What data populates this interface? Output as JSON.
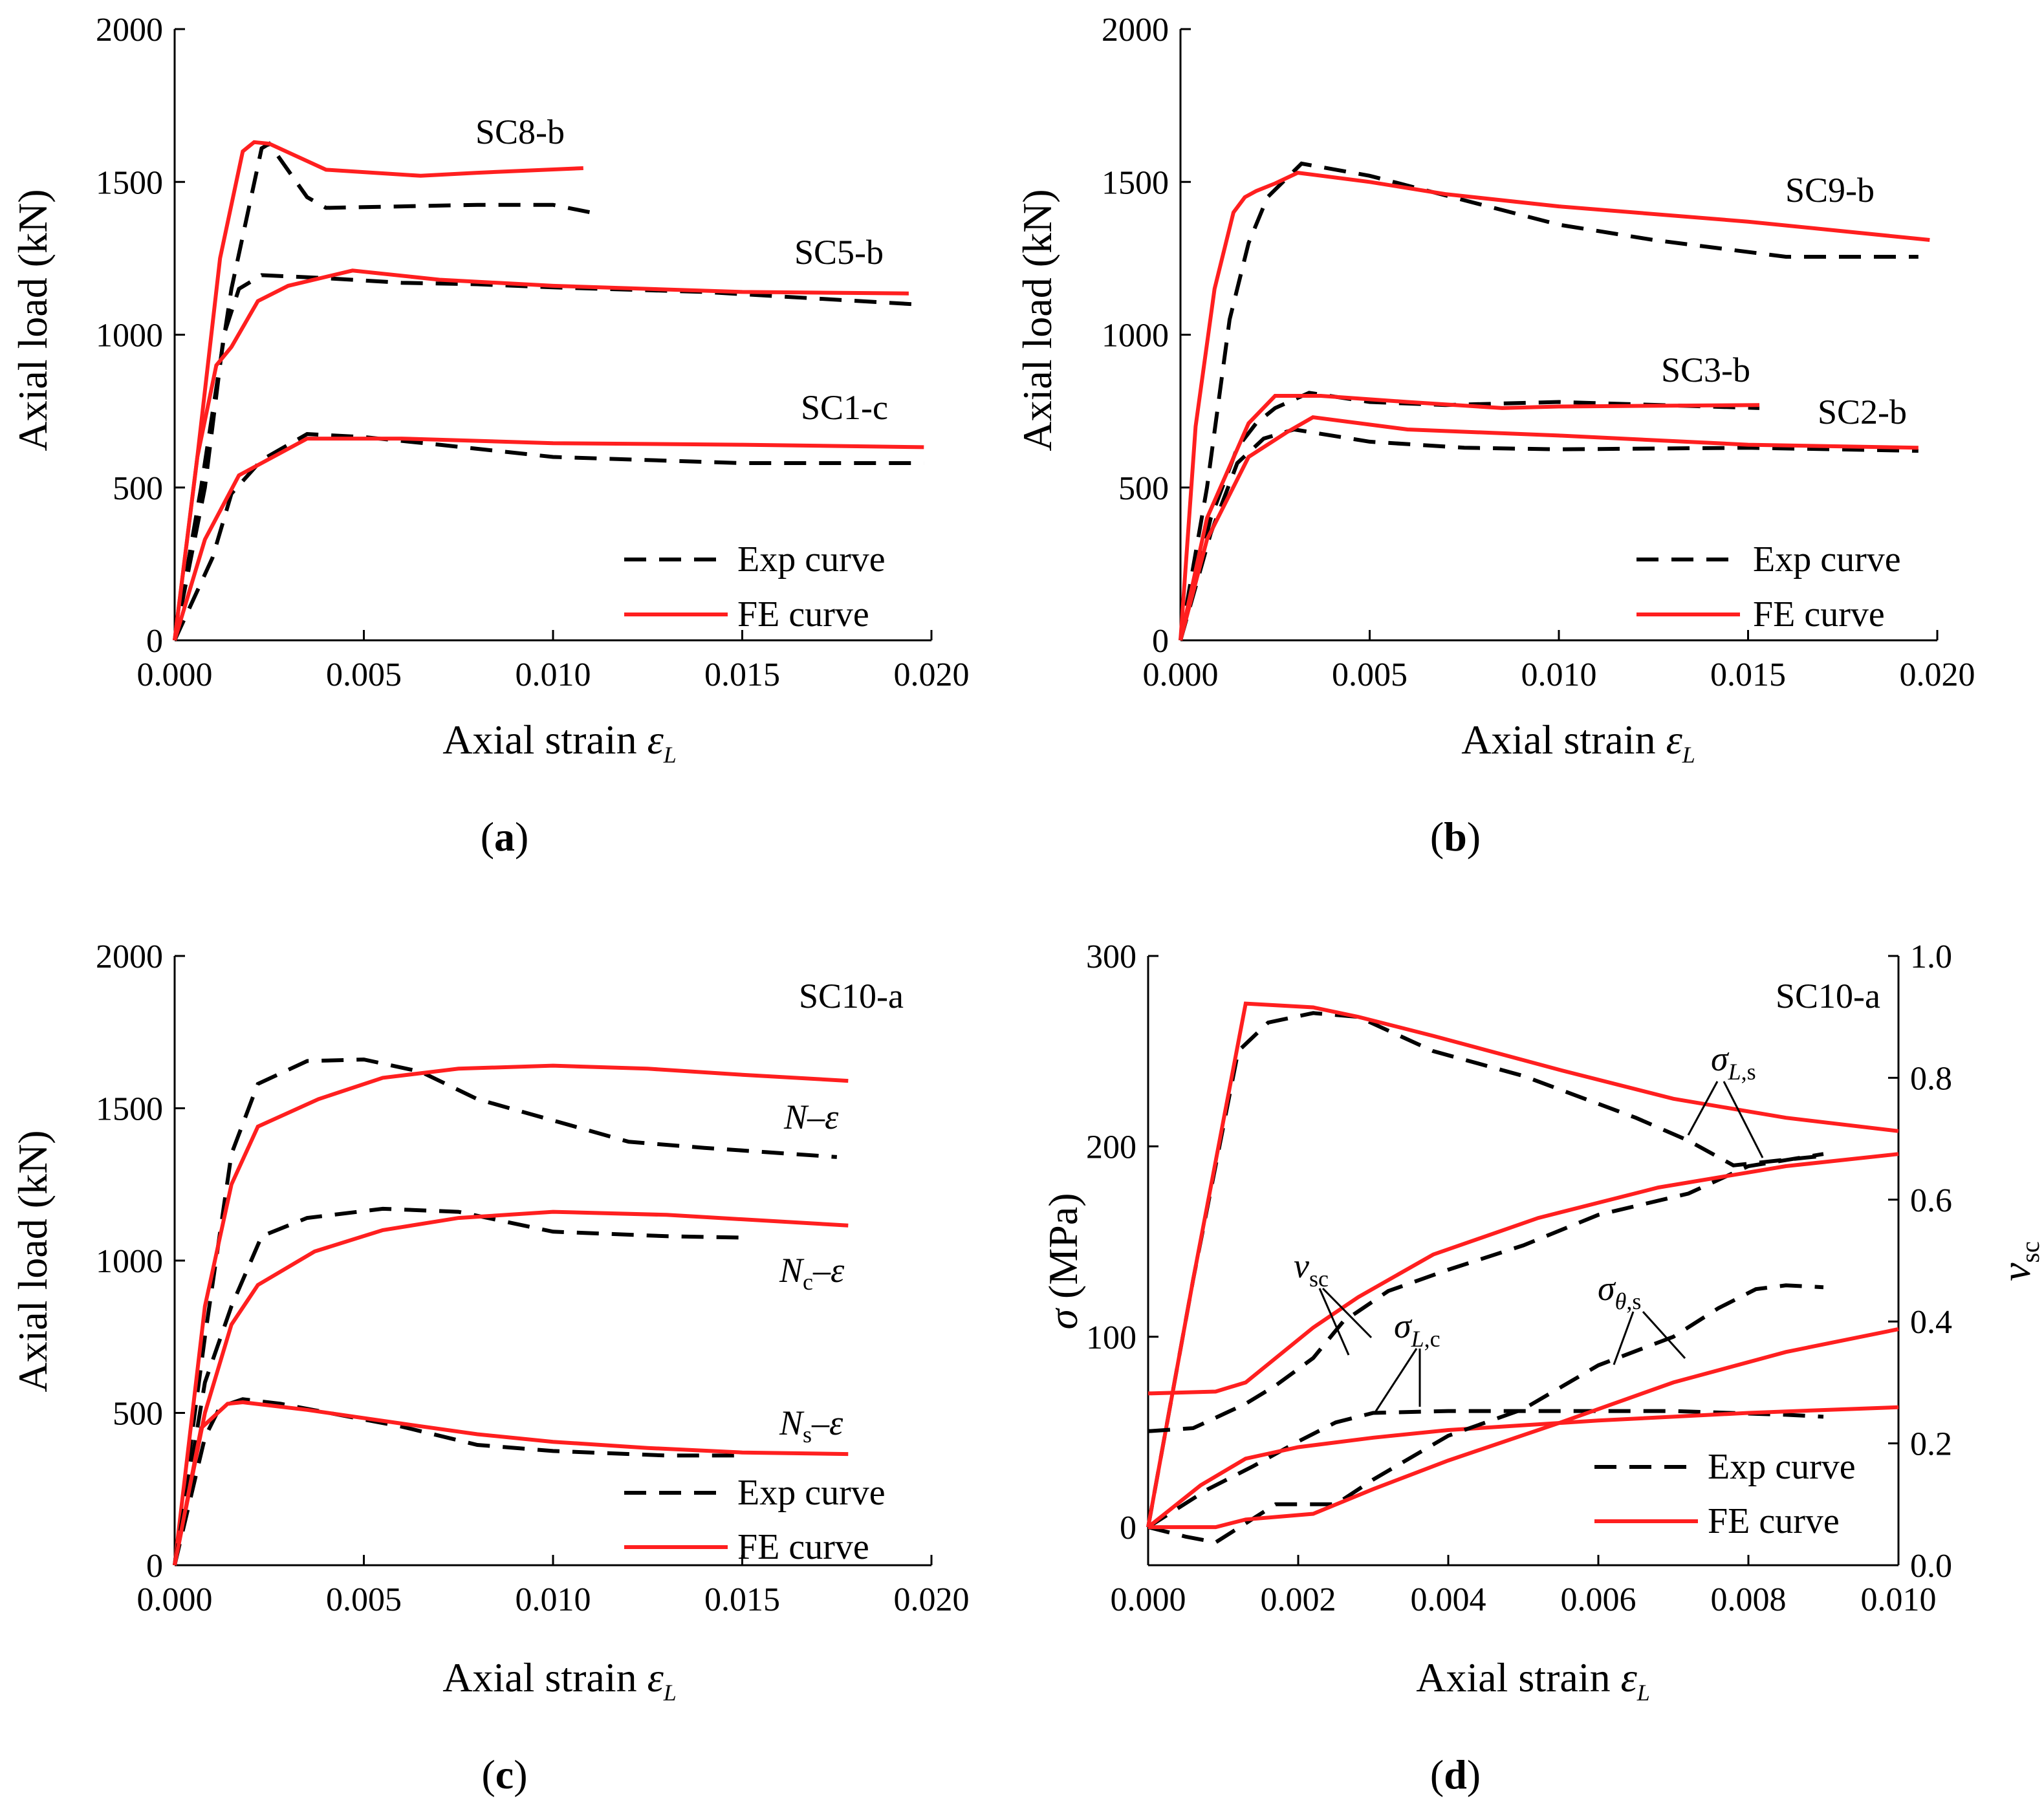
{
  "colors": {
    "exp": "#000000",
    "fe": "#ff1f1f"
  },
  "legend": {
    "exp": "Exp curve",
    "fe": "FE curve"
  },
  "chart_data": [
    {
      "type": "line",
      "panel": "(a)",
      "panel_letter": "a",
      "xlabel": "Axial strain",
      "xlabel_symbol": "ε",
      "xlabel_sub": "L",
      "ylabel": "Axial load (kN)",
      "xlim": [
        0,
        0.02
      ],
      "ylim": [
        0,
        2000
      ],
      "xticks": [
        "0.000",
        "0.005",
        "0.010",
        "0.015",
        "0.020"
      ],
      "yticks": [
        "0",
        "500",
        "1000",
        "1500",
        "2000"
      ],
      "legend_position": "bottom-right",
      "grid": false,
      "series": [
        {
          "name": "SC8-b",
          "kind": "exp",
          "x": [
            0,
            0.0007,
            0.0015,
            0.0023,
            0.0025,
            0.0035,
            0.004,
            0.006,
            0.008,
            0.01,
            0.0112
          ],
          "y": [
            0,
            500,
            1150,
            1610,
            1625,
            1450,
            1415,
            1420,
            1425,
            1425,
            1395
          ]
        },
        {
          "name": "SC8-b",
          "kind": "fe",
          "x": [
            0,
            0.0006,
            0.0012,
            0.0018,
            0.0021,
            0.0025,
            0.004,
            0.0065,
            0.008,
            0.0108
          ],
          "y": [
            0,
            600,
            1250,
            1600,
            1630,
            1625,
            1540,
            1520,
            1530,
            1545
          ]
        },
        {
          "name": "SC5-b",
          "kind": "exp",
          "x": [
            0,
            0.0008,
            0.0013,
            0.0017,
            0.0023,
            0.004,
            0.006,
            0.008,
            0.01,
            0.014,
            0.0195
          ],
          "y": [
            0,
            500,
            1000,
            1150,
            1195,
            1185,
            1170,
            1165,
            1155,
            1140,
            1100
          ]
        },
        {
          "name": "SC5-b",
          "kind": "fe",
          "x": [
            0,
            0.0006,
            0.0011,
            0.0015,
            0.0022,
            0.003,
            0.0047,
            0.007,
            0.01,
            0.015,
            0.0194
          ],
          "y": [
            0,
            600,
            900,
            960,
            1110,
            1160,
            1210,
            1180,
            1160,
            1140,
            1135
          ]
        },
        {
          "name": "SC1-c",
          "kind": "exp",
          "x": [
            0,
            0.001,
            0.0015,
            0.0023,
            0.0035,
            0.005,
            0.007,
            0.01,
            0.015,
            0.0198
          ],
          "y": [
            0,
            270,
            480,
            590,
            675,
            665,
            640,
            600,
            580,
            580
          ]
        },
        {
          "name": "SC1-c",
          "kind": "fe",
          "x": [
            0,
            0.0008,
            0.0017,
            0.0035,
            0.006,
            0.01,
            0.015,
            0.0198
          ],
          "y": [
            0,
            330,
            540,
            660,
            660,
            645,
            640,
            632
          ]
        }
      ],
      "annotations": [
        {
          "text": "SC8-b",
          "x": 0.0075,
          "y": 1650
        },
        {
          "text": "SC5-b",
          "x": 0.016,
          "y": 1240
        },
        {
          "text": "SC1-c",
          "x": 0.0165,
          "y": 730
        }
      ]
    },
    {
      "type": "line",
      "panel": "(b)",
      "panel_letter": "b",
      "xlabel": "Axial strain",
      "xlabel_symbol": "ε",
      "xlabel_sub": "L",
      "ylabel": "Axial load (kN)",
      "xlim": [
        0,
        0.02
      ],
      "ylim": [
        0,
        2000
      ],
      "xticks": [
        "0.000",
        "0.005",
        "0.010",
        "0.015",
        "0.020"
      ],
      "yticks": [
        "0",
        "500",
        "1000",
        "1500",
        "2000"
      ],
      "legend_position": "bottom-right",
      "grid": false,
      "series": [
        {
          "name": "SC9-b",
          "kind": "exp",
          "x": [
            0,
            0.0007,
            0.0013,
            0.0018,
            0.0023,
            0.0032,
            0.005,
            0.0075,
            0.01,
            0.0125,
            0.016,
            0.0195
          ],
          "y": [
            0,
            500,
            1050,
            1300,
            1450,
            1560,
            1520,
            1440,
            1360,
            1310,
            1255,
            1255
          ]
        },
        {
          "name": "SC9-b",
          "kind": "fe",
          "x": [
            0,
            0.0004,
            0.0009,
            0.0014,
            0.0017,
            0.002,
            0.0025,
            0.0031,
            0.005,
            0.007,
            0.01,
            0.015,
            0.0198
          ],
          "y": [
            0,
            700,
            1150,
            1400,
            1450,
            1470,
            1495,
            1530,
            1500,
            1460,
            1420,
            1370,
            1310
          ]
        },
        {
          "name": "SC3-b",
          "kind": "exp",
          "x": [
            0,
            0.0008,
            0.0015,
            0.002,
            0.0025,
            0.0034,
            0.005,
            0.007,
            0.01,
            0.0153
          ],
          "y": [
            0,
            400,
            630,
            710,
            760,
            810,
            780,
            770,
            780,
            760
          ]
        },
        {
          "name": "SC3-b",
          "kind": "fe",
          "x": [
            0,
            0.0007,
            0.0018,
            0.0025,
            0.0037,
            0.006,
            0.0085,
            0.01,
            0.0153
          ],
          "y": [
            0,
            400,
            710,
            800,
            800,
            780,
            760,
            765,
            770
          ]
        },
        {
          "name": "SC2-b",
          "kind": "exp",
          "x": [
            0,
            0.0008,
            0.0015,
            0.0022,
            0.003,
            0.005,
            0.0075,
            0.01,
            0.015,
            0.0195
          ],
          "y": [
            0,
            350,
            580,
            660,
            690,
            650,
            630,
            625,
            630,
            620
          ]
        },
        {
          "name": "SC2-b",
          "kind": "fe",
          "x": [
            0,
            0.0007,
            0.0018,
            0.0028,
            0.0035,
            0.006,
            0.01,
            0.015,
            0.0195
          ],
          "y": [
            0,
            330,
            600,
            680,
            730,
            690,
            670,
            640,
            630
          ]
        }
      ],
      "annotations": [
        {
          "text": "SC9-b",
          "x": 0.0155,
          "y": 1455
        },
        {
          "text": "SC3-b",
          "x": 0.012,
          "y": 845
        },
        {
          "text": "SC2-b",
          "x": 0.0162,
          "y": 710
        }
      ]
    },
    {
      "type": "line",
      "panel": "(c)",
      "panel_letter": "c",
      "xlabel": "Axial strain",
      "xlabel_symbol": "ε",
      "xlabel_sub": "L",
      "ylabel": "Axial load (kN)",
      "xlim": [
        0,
        0.02
      ],
      "ylim": [
        0,
        2000
      ],
      "xticks": [
        "0.000",
        "0.005",
        "0.010",
        "0.015",
        "0.020"
      ],
      "yticks": [
        "0",
        "500",
        "1000",
        "1500",
        "2000"
      ],
      "legend_position": "bottom-right",
      "grid": false,
      "series": [
        {
          "name": "N–ε",
          "kind": "exp",
          "x": [
            0,
            0.0008,
            0.0015,
            0.0022,
            0.0035,
            0.005,
            0.0065,
            0.008,
            0.01,
            0.012,
            0.014,
            0.0175
          ],
          "y": [
            0,
            750,
            1350,
            1580,
            1655,
            1660,
            1620,
            1530,
            1460,
            1390,
            1370,
            1340
          ]
        },
        {
          "name": "N–ε",
          "kind": "fe",
          "x": [
            0,
            0.0008,
            0.0015,
            0.0022,
            0.0038,
            0.0055,
            0.0075,
            0.01,
            0.0125,
            0.015,
            0.0178
          ],
          "y": [
            0,
            850,
            1250,
            1440,
            1530,
            1600,
            1630,
            1640,
            1630,
            1610,
            1590
          ]
        },
        {
          "name": "Nc–ε",
          "kind": "exp",
          "x": [
            0,
            0.0008,
            0.0015,
            0.0023,
            0.0035,
            0.0055,
            0.0075,
            0.01,
            0.013,
            0.0152
          ],
          "y": [
            0,
            600,
            850,
            1080,
            1140,
            1170,
            1160,
            1095,
            1080,
            1075
          ]
        },
        {
          "name": "Nc–ε",
          "kind": "fe",
          "x": [
            0,
            0.0008,
            0.0015,
            0.0022,
            0.0037,
            0.0055,
            0.0075,
            0.01,
            0.013,
            0.0178
          ],
          "y": [
            0,
            500,
            790,
            920,
            1030,
            1100,
            1140,
            1160,
            1150,
            1115
          ]
        },
        {
          "name": "Ns–ε",
          "kind": "exp",
          "x": [
            0,
            0.0008,
            0.0012,
            0.0018,
            0.0028,
            0.0045,
            0.006,
            0.008,
            0.01,
            0.013,
            0.015
          ],
          "y": [
            0,
            420,
            520,
            545,
            530,
            490,
            455,
            395,
            375,
            360,
            360
          ]
        },
        {
          "name": "Ns–ε",
          "kind": "fe",
          "x": [
            0,
            0.0007,
            0.0014,
            0.0018,
            0.0035,
            0.006,
            0.008,
            0.01,
            0.0125,
            0.015,
            0.0178
          ],
          "y": [
            0,
            450,
            530,
            535,
            510,
            465,
            430,
            405,
            385,
            370,
            365
          ]
        }
      ],
      "annotations": [
        {
          "text": "SC10-a",
          "x": 0.0164,
          "y": 1845
        },
        {
          "text": "N–ε",
          "x": 0.0161,
          "y": 1450
        },
        {
          "text": "Nc–ε",
          "x": 0.0159,
          "y": 955
        },
        {
          "text": "Ns–ε",
          "x": 0.0159,
          "y": 445
        }
      ]
    },
    {
      "type": "line",
      "panel": "(d)",
      "panel_letter": "d",
      "xlabel": "Axial strain",
      "xlabel_symbol": "ε",
      "xlabel_sub": "L",
      "ylabel": "σ (MPa)",
      "y2label": "νsc",
      "xlim": [
        0,
        0.01
      ],
      "ylim": [
        -20,
        300
      ],
      "y2lim": [
        0,
        1.0
      ],
      "xticks": [
        "0.000",
        "0.002",
        "0.004",
        "0.006",
        "0.008",
        "0.010"
      ],
      "yticks": [
        "0",
        "100",
        "200",
        "300"
      ],
      "y2ticks": [
        "0.0",
        "0.2",
        "0.4",
        "0.6",
        "0.8",
        "1.0"
      ],
      "legend_position": "bottom-right",
      "grid": false,
      "series": [
        {
          "name": "σL,s",
          "kind": "exp",
          "x": [
            0,
            0.0006,
            0.0012,
            0.0016,
            0.0022,
            0.0028,
            0.0038,
            0.005,
            0.0065,
            0.0072,
            0.0078,
            0.0085,
            0.009
          ],
          "y": [
            0,
            130,
            250,
            265,
            270,
            268,
            250,
            237,
            215,
            203,
            190,
            193,
            195
          ]
        },
        {
          "name": "σL,s",
          "kind": "fe",
          "x": [
            0,
            0.0006,
            0.0013,
            0.0022,
            0.0028,
            0.0038,
            0.0055,
            0.007,
            0.0085,
            0.01
          ],
          "y": [
            0,
            130,
            275,
            273,
            268,
            258,
            240,
            225,
            215,
            208
          ]
        },
        {
          "name": "νsc",
          "kind": "exp",
          "x": [
            0,
            0.0006,
            0.0013,
            0.0017,
            0.0022,
            0.0026,
            0.0032,
            0.004,
            0.005,
            0.006,
            0.0072,
            0.008,
            0.009
          ],
          "y": [
            0.22,
            0.225,
            0.265,
            0.295,
            0.34,
            0.4,
            0.45,
            0.485,
            0.525,
            0.575,
            0.61,
            0.655,
            0.675
          ]
        },
        {
          "name": "νsc",
          "kind": "fe",
          "x": [
            0,
            0.0009,
            0.0013,
            0.0022,
            0.0028,
            0.0038,
            0.0052,
            0.0068,
            0.0085,
            0.01
          ],
          "y": [
            0.282,
            0.285,
            0.3,
            0.39,
            0.44,
            0.51,
            0.57,
            0.62,
            0.655,
            0.675
          ]
        },
        {
          "name": "σL,c",
          "kind": "exp",
          "x": [
            0,
            0.0008,
            0.0014,
            0.002,
            0.0025,
            0.003,
            0.004,
            0.005,
            0.007,
            0.0085,
            0.009
          ],
          "y": [
            0,
            20,
            32,
            45,
            55,
            60,
            61,
            61,
            61,
            59,
            58
          ]
        },
        {
          "name": "σL,c",
          "kind": "fe",
          "x": [
            0,
            0.0007,
            0.0013,
            0.002,
            0.003,
            0.004,
            0.006,
            0.008,
            0.01
          ],
          "y": [
            0,
            22,
            36,
            42,
            47,
            51,
            56,
            60,
            63
          ]
        },
        {
          "name": "σθ,s",
          "kind": "exp",
          "x": [
            0,
            0.0005,
            0.0009,
            0.0013,
            0.0017,
            0.0025,
            0.003,
            0.004,
            0.005,
            0.006,
            0.007,
            0.0076,
            0.0081,
            0.0085,
            0.009
          ],
          "y": [
            0,
            -5,
            -8,
            2,
            12,
            12,
            25,
            48,
            62,
            85,
            100,
            115,
            125,
            127,
            126
          ]
        },
        {
          "name": "σθ,s",
          "kind": "fe",
          "x": [
            0,
            0.0009,
            0.0013,
            0.0022,
            0.003,
            0.004,
            0.0055,
            0.007,
            0.0085,
            0.01
          ],
          "y": [
            0,
            0,
            4,
            7,
            20,
            35,
            55,
            76,
            92,
            104
          ]
        }
      ],
      "annotations": [
        {
          "text": "SC10-a",
          "x": 0.0081,
          "y": 278
        },
        {
          "text": "σL,s",
          "x": 0.0068,
          "y": 228
        },
        {
          "text": "νsc",
          "x": 0.0018,
          "y": 137
        },
        {
          "text": "σL,c",
          "x": 0.003,
          "y": 103
        },
        {
          "text": "σθ,s",
          "x": 0.0054,
          "y": 120
        }
      ]
    }
  ]
}
